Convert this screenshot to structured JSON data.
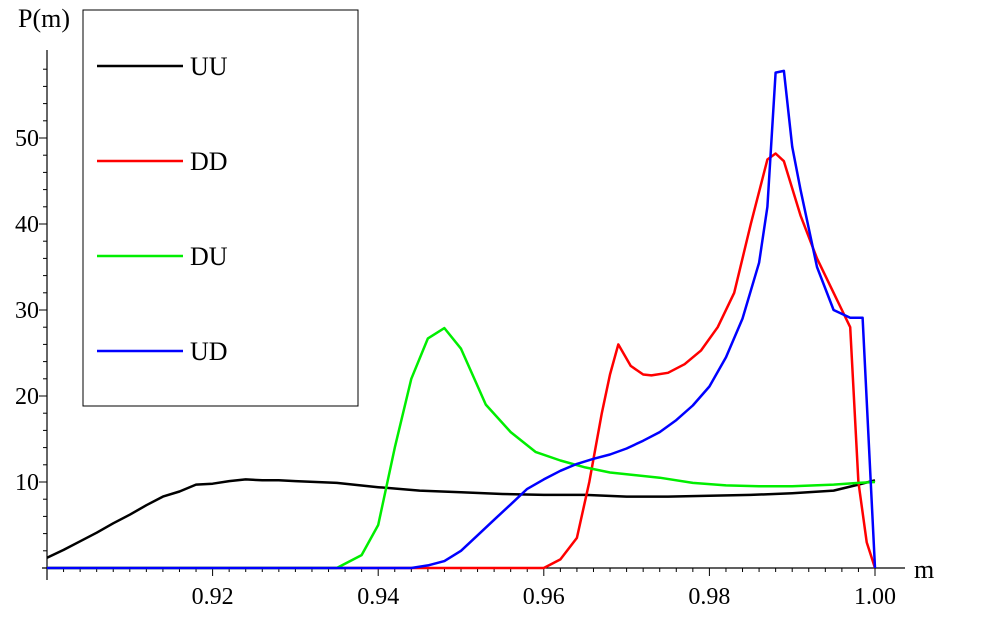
{
  "chart_data": {
    "type": "line",
    "xlabel": "m",
    "ylabel": "P(m)",
    "xlim": [
      0.9,
      1.0
    ],
    "ylim": [
      0,
      60
    ],
    "x_ticks": [
      "0.92",
      "0.94",
      "0.96",
      "0.98",
      "1.00"
    ],
    "x_tick_values": [
      0.92,
      0.94,
      0.96,
      0.98,
      1.0
    ],
    "y_ticks": [
      "10",
      "20",
      "30",
      "40",
      "50"
    ],
    "y_tick_values": [
      10,
      20,
      30,
      40,
      50
    ],
    "grid": false,
    "legend_position": "top-left",
    "series": [
      {
        "name": "UU",
        "color": "#000000",
        "x": [
          0.9,
          0.902,
          0.904,
          0.906,
          0.908,
          0.91,
          0.912,
          0.914,
          0.916,
          0.918,
          0.92,
          0.922,
          0.924,
          0.926,
          0.928,
          0.93,
          0.935,
          0.94,
          0.945,
          0.95,
          0.955,
          0.96,
          0.965,
          0.97,
          0.975,
          0.98,
          0.985,
          0.99,
          0.995,
          0.998,
          1.0
        ],
        "y": [
          1.2,
          2.1,
          3.1,
          4.1,
          5.2,
          6.2,
          7.3,
          8.3,
          8.9,
          9.7,
          9.8,
          10.1,
          10.3,
          10.2,
          10.2,
          10.1,
          9.9,
          9.4,
          9.0,
          8.8,
          8.6,
          8.5,
          8.5,
          8.3,
          8.3,
          8.4,
          8.5,
          8.7,
          9.0,
          9.7,
          10.2
        ]
      },
      {
        "name": "DD",
        "color": "#ff0000",
        "x": [
          0.9,
          0.96,
          0.962,
          0.964,
          0.9655,
          0.967,
          0.968,
          0.969,
          0.9705,
          0.972,
          0.973,
          0.975,
          0.977,
          0.979,
          0.981,
          0.983,
          0.985,
          0.987,
          0.988,
          0.989,
          0.991,
          0.993,
          0.995,
          0.996,
          0.997,
          0.998,
          0.999,
          1.0
        ],
        "y": [
          0,
          0,
          1,
          3.5,
          10,
          18,
          22.5,
          26,
          23.5,
          22.5,
          22.4,
          22.7,
          23.7,
          25.3,
          28,
          32,
          40,
          47.5,
          48.2,
          47.3,
          41,
          36,
          32,
          30,
          28,
          10,
          3,
          0
        ]
      },
      {
        "name": "DU",
        "color": "#00ee00",
        "x": [
          0.9,
          0.935,
          0.938,
          0.94,
          0.942,
          0.944,
          0.946,
          0.948,
          0.95,
          0.953,
          0.956,
          0.959,
          0.962,
          0.965,
          0.968,
          0.971,
          0.974,
          0.978,
          0.982,
          0.986,
          0.99,
          0.995,
          0.998,
          1.0
        ],
        "y": [
          0,
          0,
          1.5,
          5,
          14,
          22,
          26.7,
          27.9,
          25.5,
          19,
          15.8,
          13.5,
          12.5,
          11.7,
          11.1,
          10.8,
          10.5,
          9.9,
          9.6,
          9.5,
          9.5,
          9.7,
          9.9,
          10.0
        ]
      },
      {
        "name": "UD",
        "color": "#0000ff",
        "x": [
          0.9,
          0.944,
          0.946,
          0.948,
          0.95,
          0.952,
          0.954,
          0.956,
          0.958,
          0.96,
          0.962,
          0.964,
          0.966,
          0.968,
          0.97,
          0.972,
          0.974,
          0.976,
          0.978,
          0.98,
          0.982,
          0.984,
          0.986,
          0.987,
          0.988,
          0.989,
          0.99,
          0.991,
          0.993,
          0.995,
          0.997,
          0.9985,
          1.0
        ],
        "y": [
          0,
          0,
          0.3,
          0.8,
          2,
          3.8,
          5.6,
          7.4,
          9.2,
          10.3,
          11.3,
          12.1,
          12.7,
          13.2,
          13.9,
          14.8,
          15.8,
          17.2,
          18.9,
          21.1,
          24.5,
          29,
          35.5,
          42,
          57.6,
          57.8,
          49,
          44,
          35,
          30,
          29.1,
          29.1,
          0
        ]
      }
    ]
  }
}
